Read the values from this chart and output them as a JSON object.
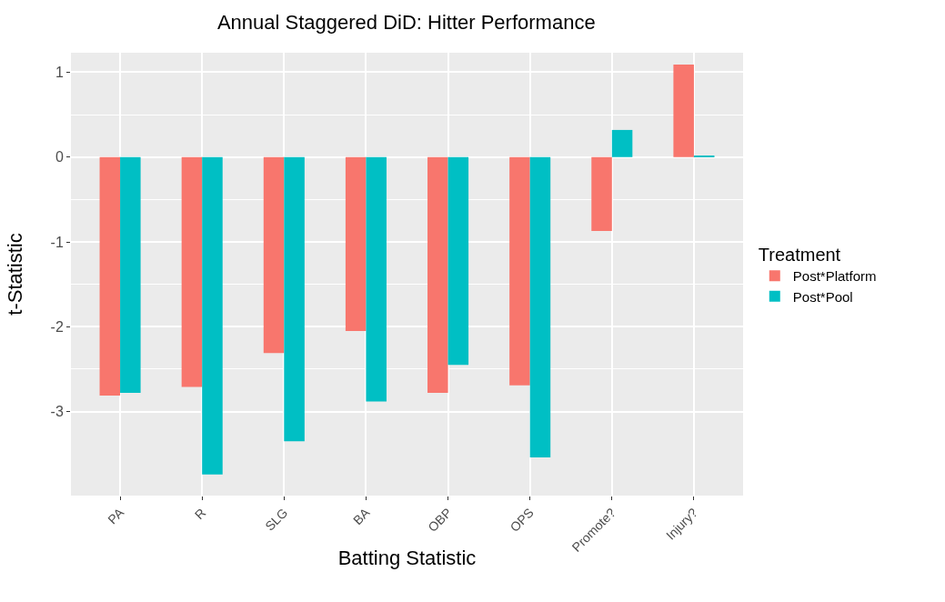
{
  "chart_data": {
    "type": "bar",
    "title": "Annual Staggered DiD: Hitter Performance",
    "xlabel": "Batting Statistic",
    "ylabel": "t-Statistic",
    "legend_title": "Treatment",
    "categories": [
      "PA",
      "R",
      "SLG",
      "BA",
      "OBP",
      "OPS",
      "Promote?",
      "Injury?"
    ],
    "series": [
      {
        "name": "Post*Platform",
        "color": "#f8766d",
        "values": [
          -2.81,
          -2.71,
          -2.31,
          -2.05,
          -2.78,
          -2.69,
          -0.87,
          1.09
        ]
      },
      {
        "name": "Post*Pool",
        "color": "#00bfc4",
        "values": [
          -2.78,
          -3.74,
          -3.35,
          -2.88,
          -2.45,
          -3.54,
          0.32,
          0.01
        ]
      }
    ],
    "ylim": [
      -3.99,
      1.23
    ],
    "yticks": [
      -3,
      -2,
      -1,
      0,
      1
    ],
    "grid": true,
    "legend": "right"
  }
}
